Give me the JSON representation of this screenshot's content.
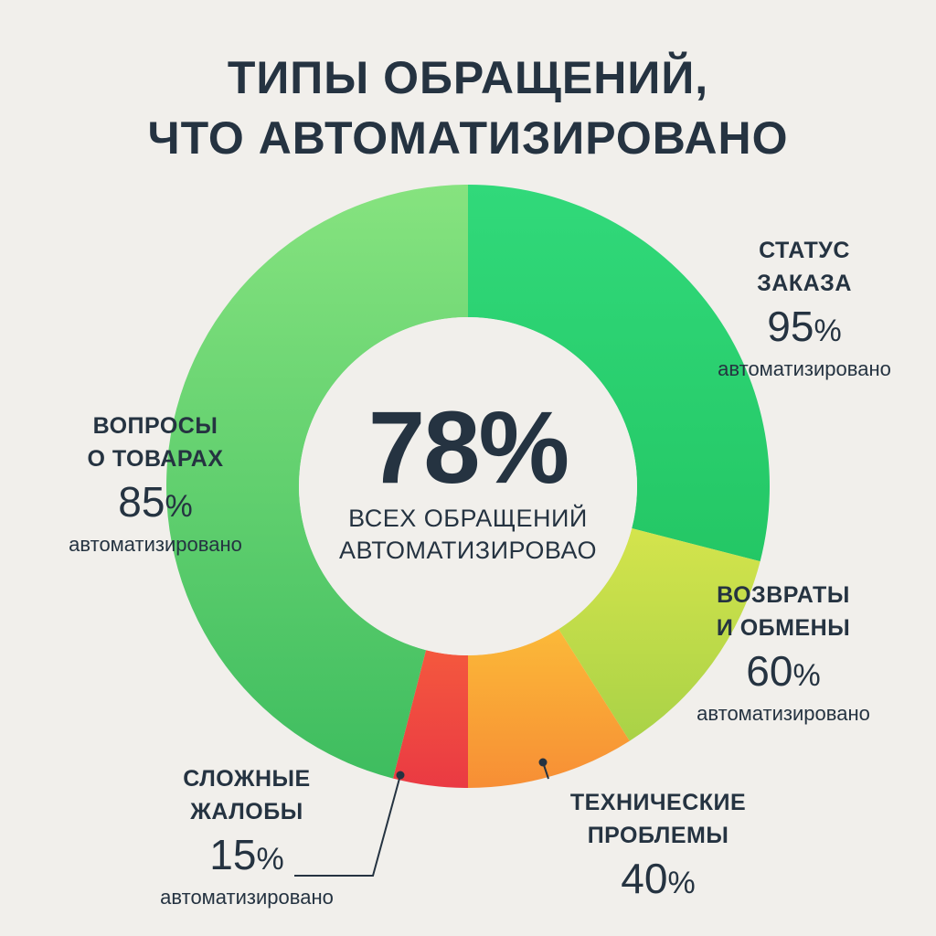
{
  "title": {
    "line1": "ТИПЫ ОБРАЩЕНИЙ,",
    "line2": "ЧТО АВТОМАТИЗИРОВАНО"
  },
  "center": {
    "value": "78%",
    "line1": "ВСЕХ ОБРАЩЕНИЙ",
    "line2": "АВТОМАТИЗИРОВАО"
  },
  "chart_data": {
    "type": "pie",
    "donut": true,
    "categories": [
      "СТАТУС ЗАКАЗА",
      "ВОЗВРАТЫ И ОБМЕНЫ",
      "ТЕХНИЧЕСКИЕ ПРОБЛЕМЫ",
      "СЛОЖНЫЕ ЖАЛОБЫ",
      "ВОПРОСЫ О ТОВАРАХ"
    ],
    "values": [
      29,
      12,
      9,
      4,
      46
    ],
    "automation_rates": [
      95,
      60,
      40,
      15,
      85
    ],
    "colors": [
      "#2dd06e",
      "#c8e04e",
      "#f9a136",
      "#ef4342",
      "#63d97a"
    ],
    "center_value": 78
  },
  "labels": [
    {
      "id": "status",
      "name1": "СТАТУС",
      "name2": "ЗАКАЗА",
      "pct_num": "95",
      "pct_sign": "%",
      "auto": "автоматизировано"
    },
    {
      "id": "returns",
      "name1": "ВОЗВРАТЫ",
      "name2": "И ОБМЕНЫ",
      "pct_num": "60",
      "pct_sign": "%",
      "auto": "автоматизировано"
    },
    {
      "id": "tech",
      "name1": "ТЕХНИЧЕСКИЕ",
      "name2": "ПРОБЛЕМЫ",
      "pct_num": "40",
      "pct_sign": "%",
      "auto": ""
    },
    {
      "id": "complaints",
      "name1": "СЛОЖНЫЕ",
      "name2": "ЖАЛОБЫ",
      "pct_num": "15",
      "pct_sign": "%",
      "auto": "автоматизировано"
    },
    {
      "id": "products",
      "name1": "ВОПРОСЫ",
      "name2": "О ТОВАРАХ",
      "pct_num": "85",
      "pct_sign": "%",
      "auto": "автоматизировано"
    }
  ]
}
